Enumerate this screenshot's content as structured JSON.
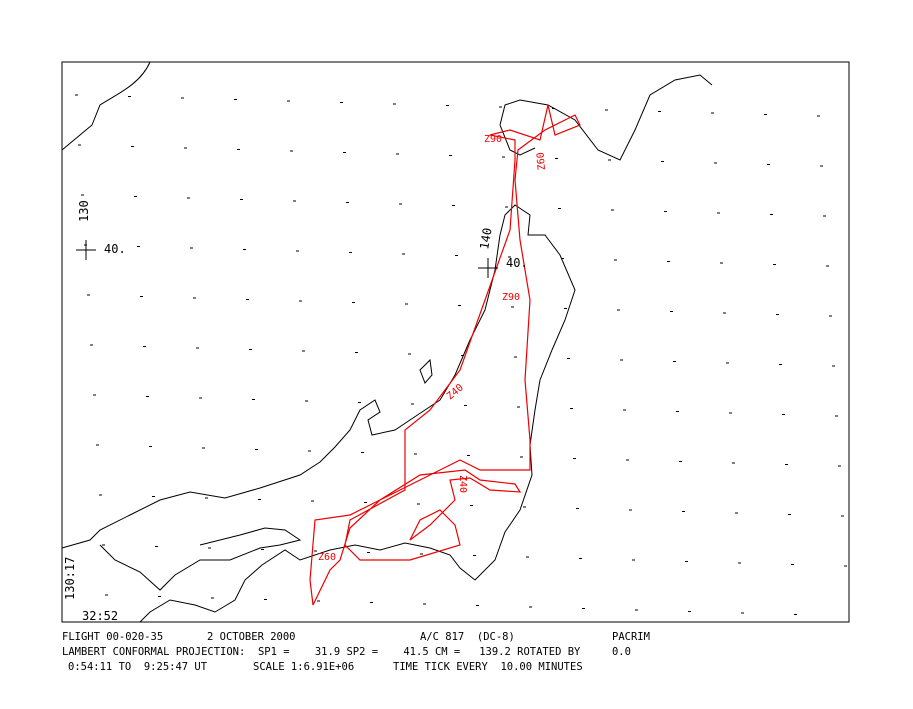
{
  "map": {
    "grid_labels": [
      "130",
      "40.",
      "140",
      "40."
    ],
    "corner_labels": [
      "130:17",
      "32:52"
    ],
    "track_labels": [
      "Z90",
      "Z60",
      "Z90",
      "Z40",
      "Z60",
      "Z40"
    ]
  },
  "footer": {
    "line1": [
      "FLIGHT 00-020-35",
      "2 OCTOBER 2000",
      "A/C 817  (DC-8)",
      "PACRIM"
    ],
    "line2": "LAMBERT CONFORMAL PROJECTION:  SP1 =    31.9 SP2 =    41.5 CM =   139.2 ROTATED BY     0.0",
    "line3": [
      "0:54:11 TO  9:25:47 UT",
      "SCALE 1:6.91E+06",
      "TIME TICK EVERY  10.00 MINUTES"
    ]
  }
}
